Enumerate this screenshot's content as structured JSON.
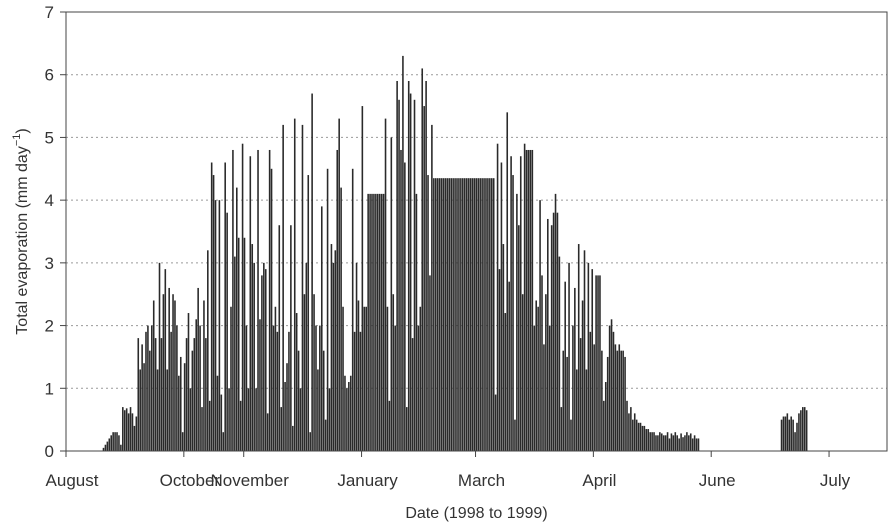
{
  "chart_data": {
    "type": "bar",
    "title": "",
    "xlabel": "Date (1998 to 1999)",
    "ylabel_main": "Total evaporation (mm day",
    "ylabel_sup": "−1",
    "ylabel_close": ")",
    "ylim": [
      0,
      7
    ],
    "yticks": [
      "0",
      "1",
      "2",
      "3",
      "4",
      "5",
      "6",
      "7"
    ],
    "x_tick_labels": [
      "August",
      "October",
      "November",
      "January",
      "March",
      "April",
      "June",
      "July"
    ],
    "x_tick_days": [
      0,
      61,
      92,
      153,
      212,
      273,
      334,
      395
    ],
    "x_range_days": [
      0,
      425
    ],
    "x_start_label": "August 1998",
    "grid": true,
    "bar_color": "#2a2a2a",
    "daily_values": [
      0,
      0,
      0,
      0,
      0,
      0,
      0,
      0,
      0,
      0,
      0,
      0,
      0,
      0,
      0,
      0,
      0,
      0,
      0,
      0.05,
      0.1,
      0.15,
      0.2,
      0.25,
      0.3,
      0.3,
      0.3,
      0.25,
      0.1,
      0.7,
      0.65,
      0.68,
      0.6,
      0.7,
      0.6,
      0.4,
      0.55,
      1.8,
      1.3,
      1.7,
      1.4,
      1.9,
      2.0,
      1.6,
      2.0,
      2.4,
      1.8,
      1.3,
      3.0,
      1.8,
      2.5,
      2.9,
      1.3,
      2.6,
      1.9,
      2.5,
      2.4,
      2.0,
      1.2,
      1.5,
      0.3,
      1.4,
      1.8,
      2.2,
      1.0,
      1.6,
      1.8,
      2.1,
      2.6,
      2.0,
      0.7,
      2.4,
      1.8,
      3.2,
      0.8,
      4.6,
      4.4,
      4.0,
      1.2,
      4.0,
      0.9,
      0.3,
      4.6,
      3.8,
      1.0,
      2.3,
      4.8,
      3.1,
      4.2,
      3.4,
      0.8,
      4.9,
      3.4,
      2.0,
      1.0,
      4.7,
      3.3,
      3.0,
      1.0,
      4.8,
      2.1,
      2.8,
      3.0,
      2.9,
      0.6,
      4.8,
      4.5,
      2.0,
      2.3,
      1.9,
      3.6,
      0.7,
      5.2,
      1.1,
      1.4,
      1.9,
      3.6,
      0.4,
      5.3,
      2.2,
      1.6,
      1.0,
      5.2,
      2.5,
      3.0,
      4.4,
      0.3,
      5.7,
      2.5,
      2.0,
      1.3,
      2.0,
      3.9,
      1.6,
      0.5,
      4.5,
      1.0,
      3.3,
      3.0,
      3.2,
      4.8,
      5.3,
      4.2,
      2.3,
      1.2,
      1.0,
      1.1,
      1.2,
      4.5,
      1.9,
      3.0,
      2.4,
      1.9,
      5.5,
      2.3,
      2.3,
      4.1,
      4.1,
      4.1,
      4.1,
      4.1,
      4.1,
      4.1,
      4.1,
      4.1,
      5.3,
      2.3,
      0.8,
      5.0,
      2.5,
      2.0,
      5.9,
      5.6,
      4.8,
      6.3,
      4.6,
      0.7,
      5.9,
      5.7,
      1.8,
      5.6,
      4.1,
      2.0,
      2.3,
      6.1,
      5.5,
      5.9,
      4.4,
      2.8,
      5.2,
      4.35,
      4.35,
      4.35,
      4.35,
      4.35,
      4.35,
      4.35,
      4.35,
      4.35,
      4.35,
      4.35,
      4.35,
      4.35,
      4.35,
      4.35,
      4.35,
      4.35,
      4.35,
      4.35,
      4.35,
      4.35,
      4.35,
      4.35,
      4.35,
      4.35,
      4.35,
      4.35,
      4.35,
      4.35,
      4.35,
      4.35,
      4.35,
      0.9,
      4.9,
      2.9,
      4.6,
      3.3,
      2.2,
      5.4,
      2.7,
      4.7,
      4.4,
      0.5,
      4.1,
      3.6,
      4.7,
      2.5,
      4.9,
      4.8,
      4.8,
      4.8,
      4.8,
      2.0,
      2.4,
      2.3,
      4.0,
      2.8,
      1.7,
      2.5,
      3.7,
      2.0,
      3.6,
      3.8,
      4.1,
      3.8,
      3.1,
      0.7,
      1.6,
      2.7,
      1.5,
      3.0,
      0.5,
      2.0,
      2.6,
      1.3,
      3.3,
      1.8,
      2.4,
      3.2,
      1.3,
      3.0,
      1.9,
      2.9,
      1.7,
      2.8,
      2.8,
      2.8,
      1.6,
      0.8,
      1.1,
      1.5,
      2.0,
      2.1,
      1.9,
      1.7,
      1.6,
      1.7,
      1.6,
      1.6,
      1.5,
      0.8,
      0.6,
      0.7,
      0.5,
      0.6,
      0.5,
      0.45,
      0.45,
      0.4,
      0.4,
      0.35,
      0.35,
      0.3,
      0.3,
      0.3,
      0.25,
      0.25,
      0.3,
      0.28,
      0.25,
      0.25,
      0.3,
      0.2,
      0.28,
      0.25,
      0.3,
      0.25,
      0.2,
      0.28,
      0.22,
      0.25,
      0.3,
      0.25,
      0.28,
      0.2,
      0.25,
      0.2,
      0.2,
      0,
      0,
      0,
      0,
      0,
      0,
      0,
      0,
      0,
      0,
      0,
      0,
      0,
      0,
      0,
      0,
      0,
      0,
      0,
      0,
      0,
      0,
      0,
      0,
      0,
      0,
      0,
      0,
      0,
      0,
      0,
      0,
      0,
      0,
      0,
      0,
      0,
      0,
      0,
      0,
      0,
      0,
      0.5,
      0.55,
      0.55,
      0.6,
      0.5,
      0.55,
      0.5,
      0.3,
      0.45,
      0.6,
      0.65,
      0.7,
      0.7,
      0.65
    ]
  }
}
